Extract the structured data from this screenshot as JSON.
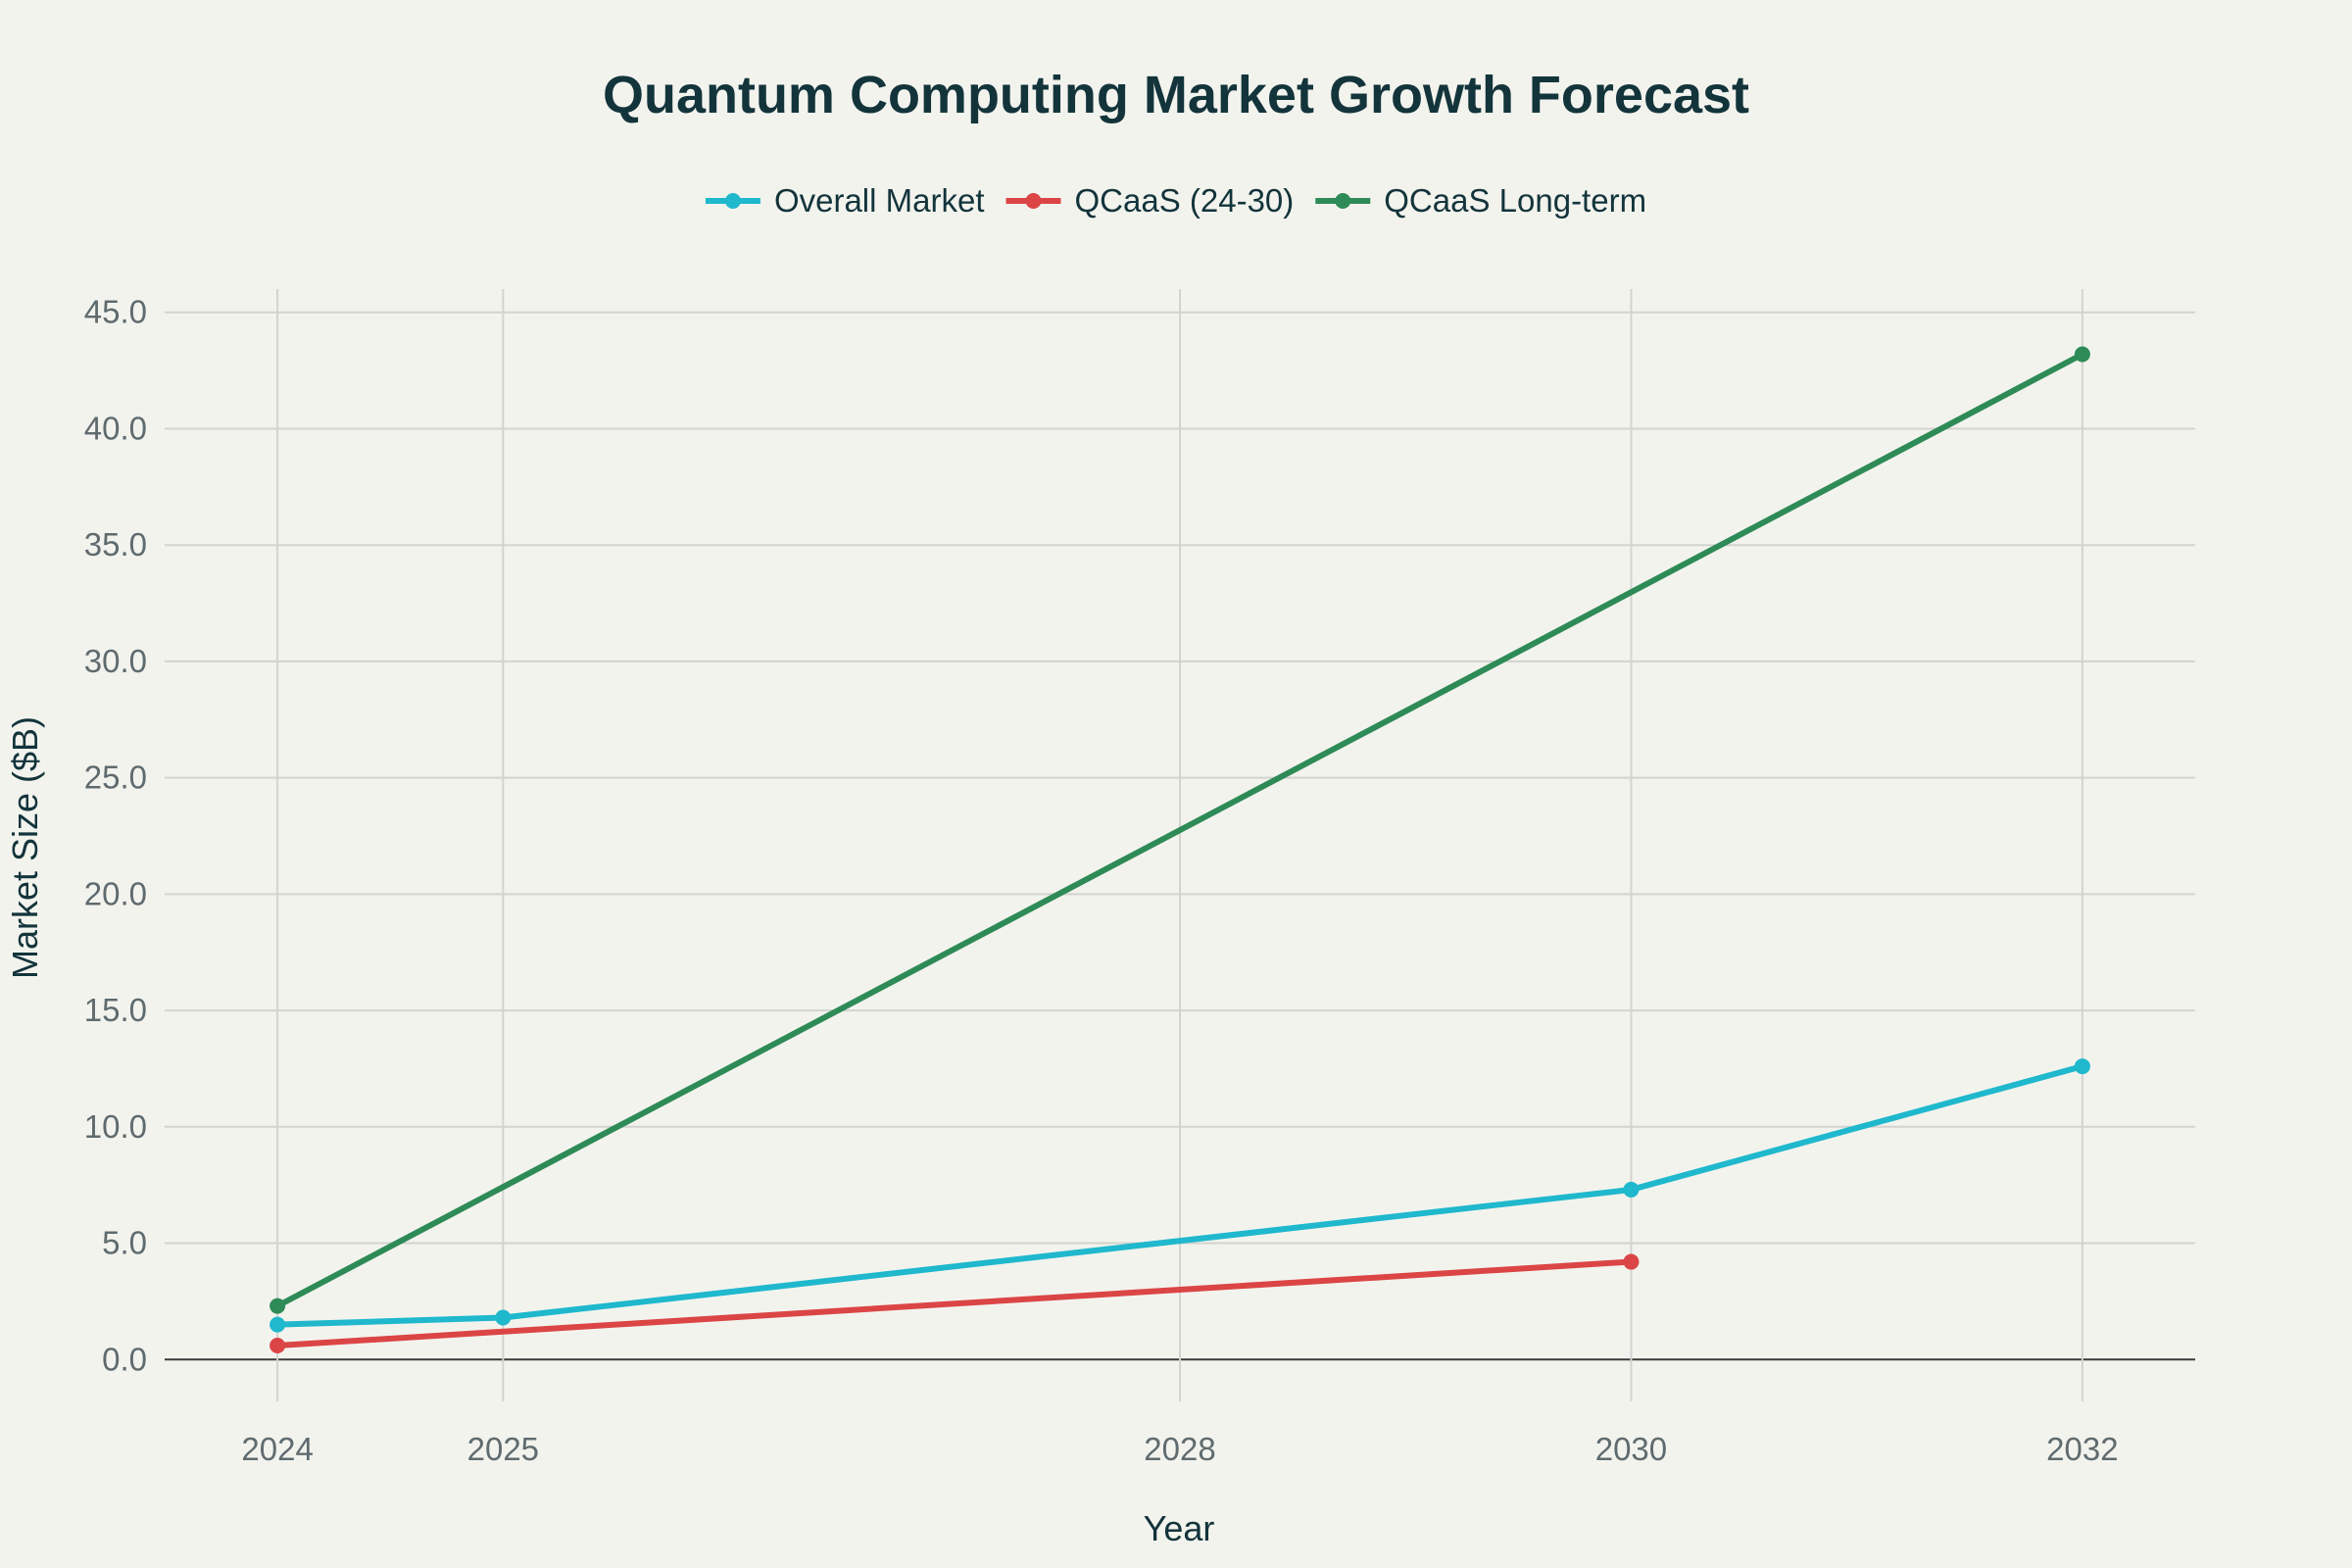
{
  "chart_data": {
    "type": "line",
    "title": "Quantum Computing Market Growth Forecast",
    "xlabel": "Year",
    "ylabel": "Market Size ($B)",
    "x_ticks": [
      2024,
      2025,
      2028,
      2030,
      2032
    ],
    "x_tick_labels": [
      "2024",
      "2025",
      "2028",
      "2030",
      "2032"
    ],
    "xlim": [
      2023.5,
      2032.5
    ],
    "ylim": [
      -1.8,
      46.0
    ],
    "y_ticks": [
      0,
      5,
      10,
      15,
      20,
      25,
      30,
      35,
      40,
      45
    ],
    "y_tick_labels": [
      "0.0",
      "5.0",
      "10.0",
      "15.0",
      "20.0",
      "25.0",
      "30.0",
      "35.0",
      "40.0",
      "45.0"
    ],
    "grid": true,
    "legend_position": "top-center",
    "series": [
      {
        "name": "Overall Market",
        "color": "#1fb8cd",
        "x": [
          2024,
          2025,
          2030,
          2032
        ],
        "y": [
          1.5,
          1.8,
          7.3,
          12.6
        ]
      },
      {
        "name": "QCaaS (24-30)",
        "color": "#db4545",
        "x": [
          2024,
          2030
        ],
        "y": [
          0.6,
          4.2
        ]
      },
      {
        "name": "QCaaS Long-term",
        "color": "#2e8b57",
        "x": [
          2024,
          2032
        ],
        "y": [
          2.3,
          43.2
        ]
      }
    ]
  }
}
